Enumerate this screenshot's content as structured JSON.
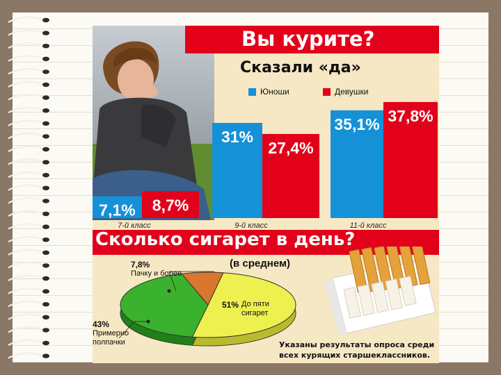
{
  "colors": {
    "boys": "#1591d8",
    "girls": "#e2001a",
    "banner": "#e2001a",
    "poster_bg": "#f6e8c4",
    "pie_green": "#3bb22e",
    "pie_yellow": "#eef050",
    "pie_orange": "#d9772e"
  },
  "photo": {
    "subject": "teenager-smoking-photo"
  },
  "pack": {
    "subject": "cigarette-pack-photo"
  },
  "chart_data": [
    {
      "type": "bar",
      "title": "Вы курите?",
      "subtitle": "Сказали «да»",
      "categories": [
        "7-й класс",
        "9-й класс",
        "11-й класс"
      ],
      "series": [
        {
          "name": "Юноши",
          "values": [
            7.1,
            31,
            35.1
          ],
          "labels": [
            "7,1%",
            "31%",
            "35,1%"
          ]
        },
        {
          "name": "Девушки",
          "values": [
            8.7,
            27.4,
            37.8
          ],
          "labels": [
            "8,7%",
            "27,4%",
            "37,8%"
          ]
        }
      ],
      "ylim": [
        0,
        40
      ],
      "legend": "top-center"
    },
    {
      "type": "pie",
      "title": "Сколько сигарет в день?",
      "subtitle": "(в среднем)",
      "slices": [
        {
          "value": 51,
          "label": "51%",
          "text": "До пяти сигарет"
        },
        {
          "value": 43,
          "label": "43%",
          "text": "Примерно полпачки"
        },
        {
          "value": 7.8,
          "label": "7,8%",
          "text": "Пачку и более"
        }
      ],
      "footnote": "Указаны результаты опроса среди всех курящих старшеклассников."
    }
  ]
}
